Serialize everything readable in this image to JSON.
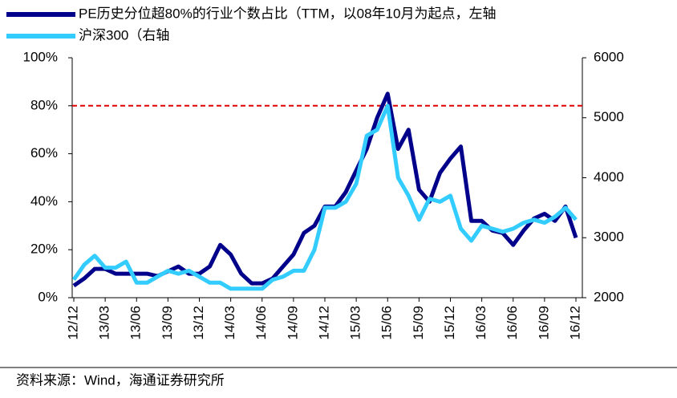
{
  "chart_data": {
    "type": "line",
    "categories": [
      "12/12",
      null,
      null,
      "13/03",
      null,
      null,
      "13/06",
      null,
      null,
      "13/09",
      null,
      null,
      "13/12",
      null,
      null,
      "14/03",
      null,
      null,
      "14/06",
      null,
      null,
      "14/09",
      null,
      null,
      "14/12",
      null,
      null,
      "15/03",
      null,
      null,
      "15/06",
      null,
      null,
      "15/09",
      null,
      null,
      "15/12",
      null,
      null,
      "16/03",
      null,
      null,
      "16/06",
      null,
      null,
      "16/09",
      null,
      null,
      "16/12"
    ],
    "series": [
      {
        "name": "PE历史分位超80%的行业个数占比（TTM，以08年10月为起点，左轴",
        "color": "#00008b",
        "values": [
          5,
          8,
          12,
          12,
          10,
          10,
          10,
          10,
          9,
          11,
          13,
          10,
          10,
          13,
          22,
          18,
          10,
          6,
          6,
          8,
          13,
          18,
          27,
          30,
          38,
          38,
          44,
          53,
          62,
          75,
          85,
          62,
          70,
          45,
          40,
          52,
          58,
          63,
          32,
          32,
          28,
          27,
          22,
          28,
          33,
          35,
          32,
          38,
          25
        ]
      },
      {
        "name": "沪深300（右轴",
        "color": "#33ccff",
        "axis": "y2",
        "values": [
          2300,
          2550,
          2700,
          2500,
          2500,
          2600,
          2250,
          2250,
          2350,
          2450,
          2400,
          2450,
          2350,
          2250,
          2250,
          2150,
          2150,
          2150,
          2150,
          2300,
          2350,
          2450,
          2450,
          2800,
          3500,
          3500,
          3600,
          3900,
          4700,
          4800,
          5200,
          4000,
          3700,
          3300,
          3650,
          3600,
          3700,
          3150,
          2950,
          3200,
          3150,
          3100,
          3150,
          3250,
          3300,
          3250,
          3350,
          3500,
          3300
        ]
      }
    ],
    "ylim": [
      0,
      100
    ],
    "yticks": [
      {
        "value": 0,
        "label": "0%"
      },
      {
        "value": 20,
        "label": "20%"
      },
      {
        "value": 40,
        "label": "40%"
      },
      {
        "value": 60,
        "label": "60%"
      },
      {
        "value": 80,
        "label": "80%"
      },
      {
        "value": 100,
        "label": "100%"
      }
    ],
    "y2lim": [
      2000,
      6000
    ],
    "y2ticks": [
      2000,
      3000,
      4000,
      5000,
      6000
    ],
    "reference_line": {
      "value": 80,
      "color": "#e00000"
    },
    "source": "资料来源：Wind，海通证券研究所"
  }
}
